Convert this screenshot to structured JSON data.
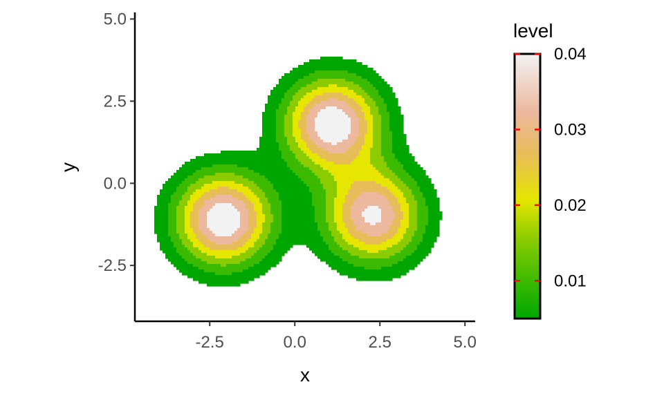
{
  "chart_data": {
    "type": "contour",
    "title": "",
    "xlabel": "x",
    "ylabel": "y",
    "xlim": [
      -4.7,
      5.3
    ],
    "ylim": [
      -4.2,
      5.2
    ],
    "x_ticks": [
      -2.5,
      0.0,
      2.5,
      5.0
    ],
    "x_tick_labels": [
      "-2.5",
      "0.0",
      "2.5",
      "5.0"
    ],
    "y_ticks": [
      -2.5,
      0.0,
      2.5,
      5.0
    ],
    "y_tick_labels": [
      "-2.5",
      "0.0",
      "2.5",
      "5.0"
    ],
    "grid": false,
    "peaks": [
      {
        "x": 1.1,
        "y": 1.8,
        "peak_level": 0.04
      },
      {
        "x": -2.1,
        "y": -1.1,
        "peak_level": 0.04
      },
      {
        "x": 2.3,
        "y": -1.0,
        "peak_level": 0.036
      }
    ],
    "levels": [
      0.005,
      0.01,
      0.015,
      0.02,
      0.025,
      0.03,
      0.035
    ],
    "level_colors": [
      "#00A600",
      "#3BBA00",
      "#8BCC00",
      "#E6E600",
      "#E7BD59",
      "#ECB89E",
      "#F2D6CC",
      "#F2F2F2"
    ],
    "legend": {
      "title": "level",
      "position": "right",
      "min": 0.005,
      "max": 0.04,
      "ticks": [
        0.01,
        0.02,
        0.03,
        0.04
      ],
      "tick_labels": [
        "0.01",
        "0.02",
        "0.03",
        "0.04"
      ],
      "tick_color": "#FF0000"
    }
  }
}
